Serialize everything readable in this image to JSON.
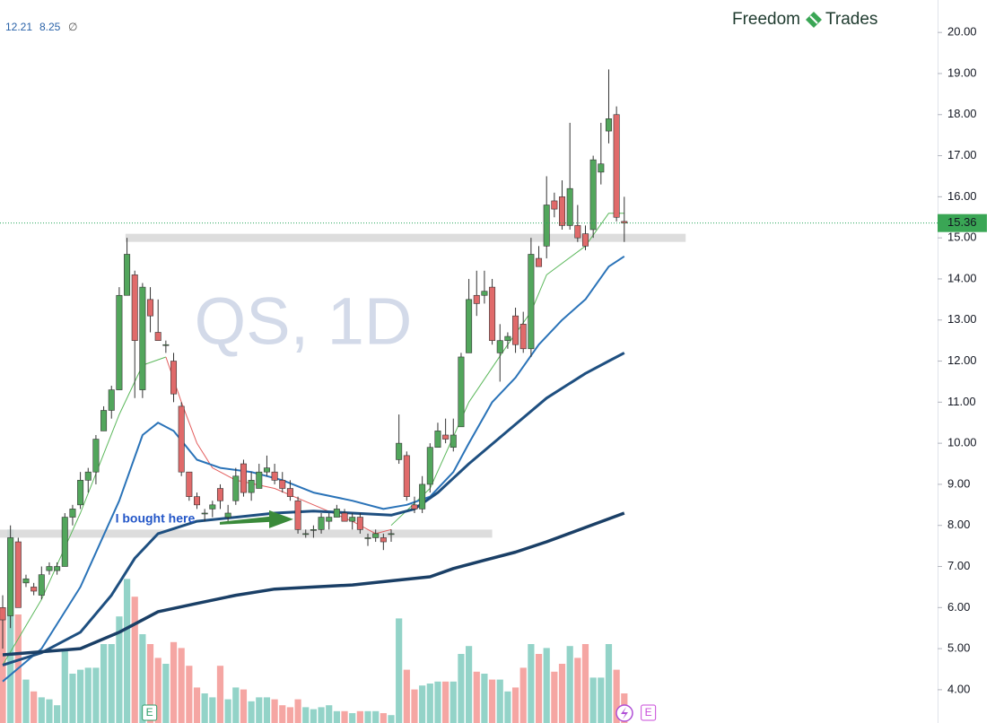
{
  "chart_data": {
    "type": "candlestick",
    "title_left": "Freedom",
    "title_right": "Trades",
    "watermark": "QS, 1D",
    "info": [
      "12.21",
      "8.25",
      "∅"
    ],
    "annotation": {
      "text": "I bought here",
      "index": 14.5,
      "price": 8.15
    },
    "ylim": [
      3.19,
      20.79
    ],
    "yticks": [
      {
        "value": 4,
        "label": "4.00"
      },
      {
        "value": 5,
        "label": "5.00"
      },
      {
        "value": 6,
        "label": "6.00"
      },
      {
        "value": 7,
        "label": "7.00"
      },
      {
        "value": 8,
        "label": "8.00"
      },
      {
        "value": 9,
        "label": "9.00"
      },
      {
        "value": 10,
        "label": "10.00"
      },
      {
        "value": 11,
        "label": "11.00"
      },
      {
        "value": 12,
        "label": "12.00"
      },
      {
        "value": 13,
        "label": "13.00"
      },
      {
        "value": 14,
        "label": "14.00"
      },
      {
        "value": 15,
        "label": "15.00"
      },
      {
        "value": 16,
        "label": "16.00"
      },
      {
        "value": 17,
        "label": "17.00"
      },
      {
        "value": 18,
        "label": "18.00"
      },
      {
        "value": 19,
        "label": "19.00"
      },
      {
        "value": 20,
        "label": "20.00"
      }
    ],
    "last_price": 15.36,
    "up_color": "#52a65c",
    "down_color": "#e06a6a",
    "volume_up_color": "#93d3c8",
    "volume_down_color": "#f5a6a3",
    "vlim": [
      0,
      100
    ],
    "open": [
      6.0,
      5.8,
      7.6,
      6.6,
      6.5,
      6.3,
      6.9,
      6.9,
      7.0,
      8.2,
      8.5,
      9.1,
      9.3,
      10.3,
      10.8,
      11.3,
      13.6,
      14.1,
      11.3,
      13.5,
      12.7,
      12.4,
      12.0,
      10.9,
      9.3,
      8.7,
      8.3,
      8.4,
      8.9,
      8.2,
      8.6,
      9.5,
      8.8,
      8.9,
      9.3,
      9.3,
      9.1,
      8.9,
      8.6,
      7.8,
      7.9,
      7.9,
      8.1,
      8.2,
      8.3,
      8.1,
      8.2,
      7.7,
      7.7,
      7.7,
      7.8,
      9.6,
      9.7,
      8.5,
      8.4,
      9.0,
      9.9,
      10.2,
      9.9,
      10.4,
      12.2,
      13.6,
      13.6,
      13.8,
      12.2,
      12.5,
      13.1,
      12.9,
      12.3,
      14.5,
      14.8,
      15.9,
      16.0,
      15.3,
      15.3,
      15.1,
      15.2,
      16.6,
      17.6,
      18.0,
      15.4
    ],
    "high": [
      6.3,
      8.0,
      7.7,
      6.8,
      6.6,
      7.0,
      7.1,
      7.1,
      8.3,
      8.5,
      9.3,
      9.4,
      10.2,
      10.9,
      11.4,
      13.8,
      15.0,
      14.2,
      13.9,
      13.8,
      13.5,
      12.5,
      12.2,
      11.0,
      9.3,
      8.8,
      8.4,
      8.6,
      9.0,
      8.5,
      9.4,
      9.6,
      9.3,
      9.5,
      9.7,
      9.5,
      9.3,
      9.1,
      8.7,
      7.9,
      8.0,
      8.3,
      8.3,
      8.5,
      8.4,
      8.3,
      8.3,
      7.8,
      7.9,
      7.8,
      7.9,
      10.7,
      9.8,
      8.7,
      9.2,
      10.0,
      10.5,
      10.6,
      10.6,
      12.2,
      14.0,
      14.2,
      14.2,
      14.0,
      12.9,
      12.7,
      13.3,
      13.2,
      15.0,
      14.8,
      16.5,
      16.1,
      16.4,
      17.8,
      15.8,
      15.3,
      17.0,
      17.8,
      19.1,
      18.2,
      16.0
    ],
    "low": [
      5.0,
      5.5,
      6.0,
      6.5,
      6.3,
      6.2,
      6.8,
      6.8,
      7.0,
      8.0,
      8.4,
      8.8,
      9.0,
      10.3,
      10.6,
      11.3,
      13.6,
      11.1,
      11.1,
      12.7,
      12.5,
      12.2,
      11.0,
      9.2,
      8.6,
      8.4,
      8.1,
      8.2,
      8.4,
      8.1,
      8.5,
      8.7,
      8.6,
      8.9,
      9.2,
      9.0,
      8.8,
      8.6,
      7.8,
      7.7,
      7.7,
      7.8,
      7.9,
      8.2,
      8.1,
      7.9,
      7.8,
      7.5,
      7.6,
      7.4,
      7.6,
      9.5,
      8.6,
      8.3,
      8.3,
      8.8,
      9.9,
      10.0,
      9.8,
      10.4,
      12.2,
      13.1,
      13.4,
      12.4,
      11.5,
      12.3,
      12.2,
      12.2,
      12.1,
      14.3,
      14.5,
      15.5,
      15.2,
      15.2,
      14.9,
      14.7,
      15.0,
      16.3,
      17.3,
      15.4,
      14.9
    ],
    "close": [
      5.7,
      7.7,
      6.0,
      6.7,
      6.4,
      6.8,
      7.0,
      7.0,
      8.2,
      8.4,
      9.1,
      9.3,
      10.1,
      10.8,
      11.3,
      13.6,
      14.6,
      12.5,
      13.8,
      13.1,
      12.5,
      12.4,
      11.2,
      9.3,
      8.7,
      8.5,
      8.3,
      8.5,
      8.6,
      8.3,
      9.2,
      8.8,
      9.1,
      9.3,
      9.4,
      9.1,
      8.9,
      8.7,
      7.9,
      7.8,
      7.9,
      8.2,
      8.2,
      8.4,
      8.1,
      8.2,
      7.9,
      7.7,
      7.8,
      7.6,
      7.8,
      10.0,
      8.7,
      8.4,
      9.0,
      9.9,
      10.3,
      10.1,
      10.2,
      12.1,
      13.5,
      13.4,
      13.7,
      12.5,
      12.5,
      12.6,
      12.4,
      12.3,
      14.6,
      14.3,
      15.8,
      15.7,
      15.3,
      16.2,
      15.0,
      14.8,
      16.9,
      16.8,
      17.9,
      15.5,
      15.36
    ],
    "volume": [
      55,
      98,
      55,
      22,
      16,
      13,
      12,
      9,
      37,
      25,
      27,
      28,
      28,
      40,
      40,
      54,
      73,
      64,
      45,
      40,
      33,
      30,
      41,
      38,
      29,
      18,
      15,
      13,
      29,
      12,
      18,
      17,
      11,
      13,
      13,
      12,
      9,
      8,
      12,
      8,
      7,
      8,
      9,
      6,
      6,
      5,
      6,
      6,
      6,
      5,
      4,
      53,
      27,
      17,
      19,
      20,
      21,
      21,
      21,
      35,
      39,
      26,
      25,
      22,
      22,
      16,
      18,
      28,
      40,
      35,
      38,
      26,
      30,
      39,
      33,
      40,
      23,
      23,
      40,
      27,
      15
    ],
    "lines": [
      {
        "color": "#5cb85c",
        "width": 1,
        "x": [
          0,
          5,
          10,
          15,
          18,
          21,
          35,
          50,
          55,
          60,
          65,
          68,
          70,
          75,
          78,
          80
        ],
        "values": [
          4.6,
          6.2,
          8.3,
          10.7,
          11.9,
          12.1,
          null,
          8.0,
          8.9,
          11.0,
          12.4,
          13.2,
          14.1,
          14.8,
          15.6,
          15.6
        ]
      },
      {
        "color": "#e35d5d",
        "width": 1,
        "x": [
          21,
          23,
          25,
          27,
          30,
          35,
          40,
          45,
          48,
          50
        ],
        "values": [
          12.1,
          11.0,
          10.0,
          9.4,
          9.1,
          8.9,
          8.5,
          8.1,
          7.8,
          7.9
        ]
      },
      {
        "color": "#2a73b8",
        "width": 2,
        "x": [
          0,
          5,
          10,
          15,
          18,
          20,
          22,
          25,
          28,
          32,
          36,
          40,
          45,
          49,
          52,
          55,
          58,
          60,
          63,
          66,
          69,
          72,
          75,
          78,
          80
        ],
        "values": [
          4.2,
          5.0,
          6.5,
          8.6,
          10.2,
          10.5,
          10.3,
          9.6,
          9.4,
          9.3,
          9.1,
          8.8,
          8.6,
          8.4,
          8.5,
          8.7,
          9.3,
          10.0,
          11.0,
          11.6,
          12.4,
          13.0,
          13.5,
          14.3,
          14.55
        ]
      },
      {
        "color": "#1e4f80",
        "width": 3,
        "x": [
          0,
          5,
          10,
          14,
          17,
          20,
          25,
          30,
          35,
          40,
          45,
          50,
          53,
          56,
          60,
          65,
          70,
          75,
          78,
          80
        ],
        "values": [
          4.6,
          4.9,
          5.4,
          6.3,
          7.2,
          7.8,
          8.1,
          8.2,
          8.3,
          8.35,
          8.3,
          8.25,
          8.4,
          8.8,
          9.5,
          10.3,
          11.1,
          11.7,
          12.0,
          12.2
        ]
      },
      {
        "color": "#1a3f66",
        "width": 3.5,
        "x": [
          0,
          10,
          15,
          20,
          25,
          30,
          35,
          40,
          45,
          50,
          55,
          58,
          62,
          66,
          70,
          75,
          80
        ],
        "values": [
          4.85,
          5.0,
          5.4,
          5.9,
          6.1,
          6.3,
          6.45,
          6.5,
          6.55,
          6.65,
          6.75,
          6.95,
          7.15,
          7.35,
          7.6,
          7.95,
          8.3
        ]
      }
    ],
    "zones": [
      {
        "value": 15.0,
        "start": 15.8,
        "end": 87.9
      },
      {
        "value": 7.8,
        "start": -0.4,
        "end": 63.0
      }
    ],
    "events": [
      {
        "label": "E",
        "index": 18.9
      },
      {
        "label": "E",
        "index": 83.1
      }
    ]
  }
}
